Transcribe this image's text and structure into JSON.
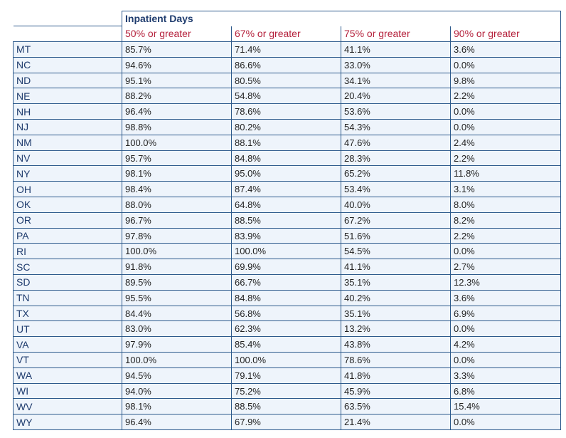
{
  "table": {
    "group_header": "Inpatient Days",
    "columns": [
      "50% or greater",
      "67% or greater",
      "75% or greater",
      "90% or greater"
    ],
    "rows": [
      {
        "state": "MT",
        "values": [
          "85.7%",
          "71.4%",
          "41.1%",
          "3.6%"
        ]
      },
      {
        "state": "NC",
        "values": [
          "94.6%",
          "86.6%",
          "33.0%",
          "0.0%"
        ]
      },
      {
        "state": "ND",
        "values": [
          "95.1%",
          "80.5%",
          "34.1%",
          "9.8%"
        ]
      },
      {
        "state": "NE",
        "values": [
          "88.2%",
          "54.8%",
          "20.4%",
          "2.2%"
        ]
      },
      {
        "state": "NH",
        "values": [
          "96.4%",
          "78.6%",
          "53.6%",
          "0.0%"
        ]
      },
      {
        "state": "NJ",
        "values": [
          "98.8%",
          "80.2%",
          "54.3%",
          "0.0%"
        ]
      },
      {
        "state": "NM",
        "values": [
          "100.0%",
          "88.1%",
          "47.6%",
          "2.4%"
        ]
      },
      {
        "state": "NV",
        "values": [
          "95.7%",
          "84.8%",
          "28.3%",
          "2.2%"
        ]
      },
      {
        "state": "NY",
        "values": [
          "98.1%",
          "95.0%",
          "65.2%",
          "11.8%"
        ]
      },
      {
        "state": "OH",
        "values": [
          "98.4%",
          "87.4%",
          "53.4%",
          "3.1%"
        ]
      },
      {
        "state": "OK",
        "values": [
          "88.0%",
          "64.8%",
          "40.0%",
          "8.0%"
        ]
      },
      {
        "state": "OR",
        "values": [
          "96.7%",
          "88.5%",
          "67.2%",
          "8.2%"
        ]
      },
      {
        "state": "PA",
        "values": [
          "97.8%",
          "83.9%",
          "51.6%",
          "2.2%"
        ]
      },
      {
        "state": "RI",
        "values": [
          "100.0%",
          "100.0%",
          "54.5%",
          "0.0%"
        ]
      },
      {
        "state": "SC",
        "values": [
          "91.8%",
          "69.9%",
          "41.1%",
          "2.7%"
        ]
      },
      {
        "state": "SD",
        "values": [
          "89.5%",
          "66.7%",
          "35.1%",
          "12.3%"
        ]
      },
      {
        "state": "TN",
        "values": [
          "95.5%",
          "84.8%",
          "40.2%",
          "3.6%"
        ]
      },
      {
        "state": "TX",
        "values": [
          "84.4%",
          "56.8%",
          "35.1%",
          "6.9%"
        ]
      },
      {
        "state": "UT",
        "values": [
          "83.0%",
          "62.3%",
          "13.2%",
          "0.0%"
        ]
      },
      {
        "state": "VA",
        "values": [
          "97.9%",
          "85.4%",
          "43.8%",
          "4.2%"
        ]
      },
      {
        "state": "VT",
        "values": [
          "100.0%",
          "100.0%",
          "78.6%",
          "0.0%"
        ]
      },
      {
        "state": "WA",
        "values": [
          "94.5%",
          "79.1%",
          "41.8%",
          "3.3%"
        ]
      },
      {
        "state": "WI",
        "values": [
          "94.0%",
          "75.2%",
          "45.9%",
          "6.8%"
        ]
      },
      {
        "state": "WV",
        "values": [
          "98.1%",
          "88.5%",
          "63.5%",
          "15.4%"
        ]
      },
      {
        "state": "WY",
        "values": [
          "96.4%",
          "67.9%",
          "21.4%",
          "0.0%"
        ]
      }
    ]
  },
  "colors": {
    "border": "#2d5a8c",
    "header_text": "#1f3c6e",
    "column_header_text": "#b41f3a",
    "cell_background": "#eef4fb"
  }
}
